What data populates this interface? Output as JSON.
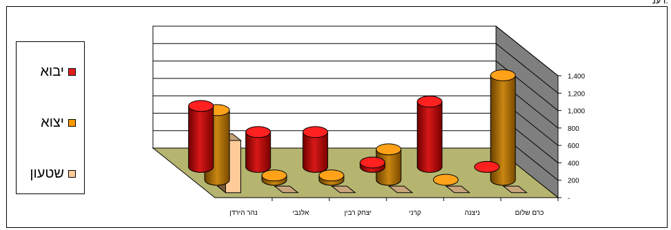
{
  "header_fragment": "רענ.",
  "legend": [
    {
      "label": "יבוא",
      "color": "#e02020"
    },
    {
      "label": "יצוא",
      "color": "#ff9900"
    },
    {
      "label": "שטעון",
      "color": "#ffcc99"
    }
  ],
  "chart_data": {
    "type": "bar",
    "variant": "3d-cylinder",
    "categories": [
      "כרם שלום",
      "ניצנה",
      "קרני",
      "יצחק רבין",
      "אלנבי",
      "נהר הירדן"
    ],
    "series": [
      {
        "name": "יבוא",
        "values": [
          20,
          750,
          50,
          400,
          400,
          700
        ]
      },
      {
        "name": "יצוא",
        "values": [
          1200,
          0,
          350,
          50,
          50,
          800
        ]
      },
      {
        "name": "שטעון",
        "values": [
          0,
          0,
          0,
          0,
          0,
          600
        ]
      }
    ],
    "yticks": [
      "-",
      "200",
      "400",
      "600",
      "800",
      "1,000",
      "1,200",
      "1,400"
    ],
    "ylim": [
      0,
      1400
    ],
    "grid": true,
    "legend_position": "left"
  }
}
